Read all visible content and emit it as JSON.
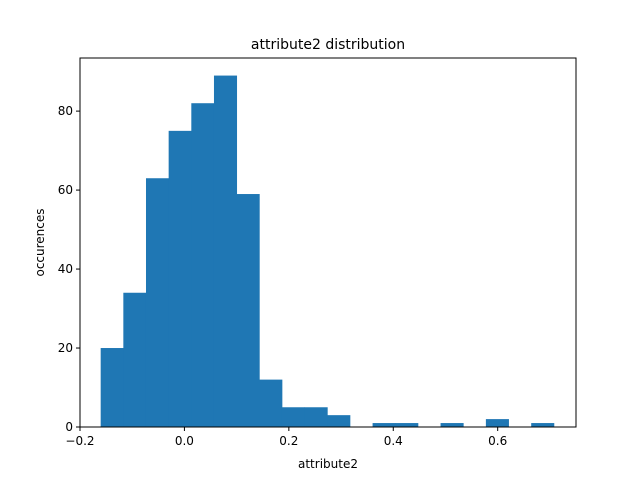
{
  "chart_data": {
    "type": "bar",
    "title": "attribute2 distribution",
    "xlabel": "attribute2",
    "ylabel": "occurences",
    "bin_edges": [
      -0.1604,
      -0.117,
      -0.0736,
      -0.0302,
      0.0132,
      0.0566,
      0.1,
      0.1434,
      0.1868,
      0.2302,
      0.2736,
      0.317,
      0.3604,
      0.4038,
      0.4472,
      0.4906,
      0.534,
      0.5774,
      0.6208,
      0.6642,
      0.7076
    ],
    "values": [
      20,
      34,
      63,
      75,
      82,
      89,
      59,
      12,
      5,
      5,
      3,
      0,
      1,
      1,
      0,
      1,
      0,
      2,
      0,
      1
    ],
    "xlim": [
      -0.2,
      0.75
    ],
    "ylim": [
      0,
      93.45
    ],
    "x_ticks": [
      -0.2,
      0.0,
      0.2,
      0.4,
      0.6
    ],
    "x_tick_labels": [
      "−0.2",
      "0.0",
      "0.2",
      "0.4",
      "0.6"
    ],
    "y_ticks": [
      0,
      20,
      40,
      60,
      80
    ],
    "y_tick_labels": [
      "0",
      "20",
      "40",
      "60",
      "80"
    ],
    "bar_color": "#1f77b4",
    "grid": false
  }
}
